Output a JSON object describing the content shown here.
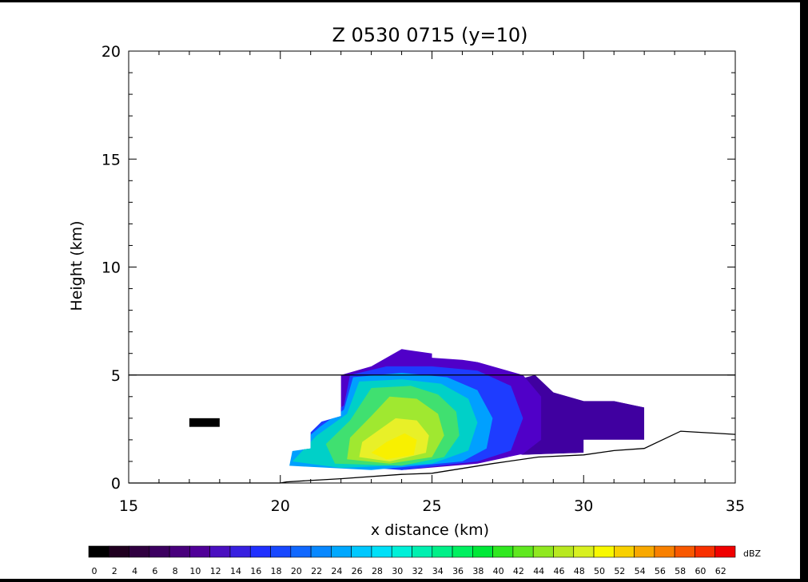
{
  "chart_data": {
    "type": "filled-contour",
    "title": "Z 0530 0715 (y=10)",
    "xlabel": "x distance (km)",
    "ylabel": "Height (km)",
    "xlim": [
      15,
      35
    ],
    "ylim": [
      0,
      20
    ],
    "x_ticks": [
      15,
      20,
      25,
      30,
      35
    ],
    "y_ticks": [
      0,
      5,
      10,
      15,
      20
    ],
    "reference_line_y": 5,
    "terrain": [
      [
        15,
        0
      ],
      [
        20,
        0
      ],
      [
        20.2,
        0.05
      ],
      [
        22,
        0.2
      ],
      [
        24,
        0.4
      ],
      [
        25,
        0.45
      ],
      [
        27,
        0.9
      ],
      [
        28.5,
        1.2
      ],
      [
        30,
        1.3
      ],
      [
        31,
        1.5
      ],
      [
        32,
        1.6
      ],
      [
        33.2,
        2.4
      ],
      [
        35,
        2.25
      ]
    ],
    "echo_outline": [
      [
        20,
        0.5
      ],
      [
        20,
        1.4
      ],
      [
        21,
        1.6
      ],
      [
        21,
        2.7
      ],
      [
        22,
        3.1
      ],
      [
        22,
        5.0
      ],
      [
        23,
        5.5
      ],
      [
        23.2,
        6.0
      ],
      [
        24,
        6.4
      ],
      [
        25,
        6.3
      ],
      [
        25,
        5.8
      ],
      [
        26,
        5.7
      ],
      [
        27,
        5.5
      ],
      [
        28,
        5.0
      ],
      [
        29,
        5.0
      ],
      [
        29,
        4.2
      ],
      [
        30,
        3.8
      ],
      [
        31,
        3.8
      ],
      [
        32,
        3.5
      ],
      [
        32,
        2.0
      ],
      [
        30,
        2.0
      ],
      [
        30,
        1.4
      ],
      [
        28,
        1.3
      ],
      [
        27,
        0.9
      ],
      [
        25,
        0.65
      ],
      [
        24,
        0.55
      ],
      [
        23,
        0.5
      ]
    ],
    "contours": [
      {
        "dbz": 8,
        "color": "#4000a0",
        "points": [
          [
            28.4,
            5.0
          ],
          [
            29,
            4.2
          ],
          [
            30,
            3.8
          ],
          [
            31,
            3.8
          ],
          [
            32,
            3.5
          ],
          [
            32,
            2.0
          ],
          [
            30,
            2.0
          ],
          [
            30,
            1.4
          ],
          [
            28,
            1.3
          ],
          [
            27,
            1.6
          ],
          [
            27,
            4.5
          ]
        ]
      },
      {
        "dbz": 12,
        "color": "#5000c8",
        "points": [
          [
            23,
            5.4
          ],
          [
            24,
            6.2
          ],
          [
            25,
            6.0
          ],
          [
            26.5,
            5.6
          ],
          [
            28,
            5.0
          ],
          [
            28.6,
            4.0
          ],
          [
            28.6,
            2.0
          ],
          [
            28,
            1.35
          ],
          [
            26.5,
            0.9
          ],
          [
            24,
            0.6
          ],
          [
            22,
            1.0
          ],
          [
            22,
            5.0
          ]
        ]
      },
      {
        "dbz": 18,
        "color": "#1e3cff",
        "points": [
          [
            22.3,
            5.0
          ],
          [
            23.5,
            5.4
          ],
          [
            25,
            5.4
          ],
          [
            26.5,
            5.2
          ],
          [
            27.6,
            4.5
          ],
          [
            28,
            3.0
          ],
          [
            27.6,
            1.5
          ],
          [
            26.5,
            1.0
          ],
          [
            24,
            0.6
          ],
          [
            21,
            0.9
          ],
          [
            20.6,
            1.8
          ],
          [
            21.4,
            2.9
          ],
          [
            22.1,
            3.6
          ]
        ]
      },
      {
        "dbz": 22,
        "color": "#00a0ff",
        "points": [
          [
            22.4,
            4.9
          ],
          [
            24,
            5.1
          ],
          [
            25.5,
            4.9
          ],
          [
            26.5,
            4.3
          ],
          [
            27,
            3.0
          ],
          [
            26.8,
            1.6
          ],
          [
            26,
            1.0
          ],
          [
            23,
            0.6
          ],
          [
            20.3,
            0.8
          ],
          [
            20.4,
            1.5
          ],
          [
            21.3,
            2.6
          ],
          [
            22.1,
            3.4
          ]
        ]
      },
      {
        "dbz": 28,
        "color": "#00d0c8",
        "points": [
          [
            22.6,
            4.7
          ],
          [
            24,
            4.8
          ],
          [
            25.3,
            4.6
          ],
          [
            26.2,
            3.9
          ],
          [
            26.5,
            2.8
          ],
          [
            26.2,
            1.5
          ],
          [
            25,
            0.9
          ],
          [
            22,
            0.7
          ],
          [
            20.4,
            1.0
          ],
          [
            21.2,
            2.2
          ],
          [
            22.2,
            3.2
          ]
        ]
      },
      {
        "dbz": 34,
        "color": "#40e070",
        "points": [
          [
            23,
            4.4
          ],
          [
            24.3,
            4.5
          ],
          [
            25.2,
            4.1
          ],
          [
            25.8,
            3.3
          ],
          [
            25.9,
            2.2
          ],
          [
            25.4,
            1.2
          ],
          [
            24,
            0.8
          ],
          [
            21.8,
            0.9
          ],
          [
            21.5,
            1.8
          ],
          [
            22.3,
            2.9
          ]
        ]
      },
      {
        "dbz": 40,
        "color": "#a0e830",
        "points": [
          [
            23.6,
            4.0
          ],
          [
            24.5,
            3.9
          ],
          [
            25.2,
            3.2
          ],
          [
            25.4,
            2.2
          ],
          [
            25,
            1.2
          ],
          [
            23.6,
            0.9
          ],
          [
            22.2,
            1.1
          ],
          [
            22.3,
            2.1
          ],
          [
            23,
            3.1
          ]
        ]
      },
      {
        "dbz": 46,
        "color": "#e8f028",
        "points": [
          [
            23.8,
            3.0
          ],
          [
            24.5,
            2.9
          ],
          [
            24.9,
            2.2
          ],
          [
            24.8,
            1.4
          ],
          [
            23.6,
            1.0
          ],
          [
            22.6,
            1.2
          ],
          [
            22.7,
            1.9
          ],
          [
            23.3,
            2.5
          ]
        ]
      },
      {
        "dbz": 50,
        "color": "#f8f000",
        "points": [
          [
            24.1,
            2.3
          ],
          [
            24.5,
            2.0
          ],
          [
            24.4,
            1.3
          ],
          [
            23.5,
            1.1
          ],
          [
            23,
            1.4
          ],
          [
            23.5,
            1.9
          ]
        ]
      }
    ],
    "black_patch": {
      "x": [
        17.0,
        18.0
      ],
      "y": [
        2.6,
        3.0
      ],
      "color": "#000000"
    },
    "colorbar": {
      "unit": "dBZ",
      "levels": [
        "0",
        "2",
        "4",
        "6",
        "8",
        "10",
        "12",
        "14",
        "16",
        "18",
        "20",
        "22",
        "24",
        "26",
        "28",
        "30",
        "32",
        "34",
        "36",
        "38",
        "40",
        "42",
        "44",
        "46",
        "48",
        "50",
        "52",
        "54",
        "56",
        "58",
        "60",
        "62"
      ],
      "colors": [
        "#000000",
        "#200020",
        "#300040",
        "#3c0060",
        "#48007c",
        "#500098",
        "#4a10c0",
        "#3820e0",
        "#2030ff",
        "#1848ff",
        "#1068ff",
        "#0888ff",
        "#00a8ff",
        "#00c8ff",
        "#00e0f8",
        "#00f0d8",
        "#00f0b0",
        "#00f088",
        "#00f060",
        "#00e838",
        "#30e820",
        "#60e820",
        "#90e820",
        "#b8e820",
        "#d8f020",
        "#f8f800",
        "#f8d000",
        "#f8a800",
        "#f88000",
        "#f85800",
        "#f83000",
        "#f00000"
      ]
    }
  }
}
